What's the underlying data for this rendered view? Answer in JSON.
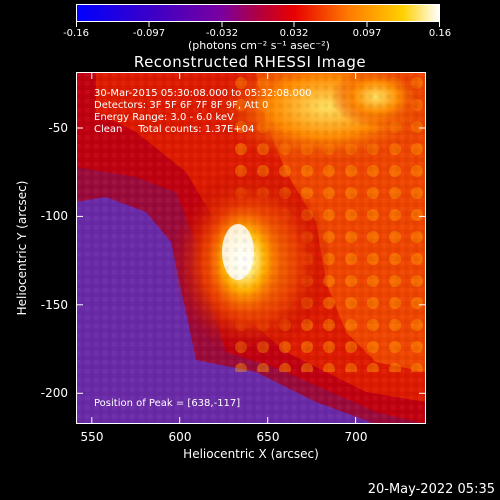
{
  "colorbar": {
    "tick_labels": [
      "-0.16",
      "-0.097",
      "-0.032",
      "0.032",
      "0.097",
      "0.16"
    ],
    "unit_label": "(photons cm⁻² s⁻¹ asec⁻²)",
    "min": -0.16,
    "max": 0.16
  },
  "image": {
    "title": "Reconstructed RHESSI Image",
    "annotations": {
      "time_range": "30-Mar-2015 05:30:08.000 to 05:32:08.000",
      "detectors": "Detectors: 3F 5F 6F 7F 8F 9F, Att 0",
      "energy_range": "Energy Range: 3.0 - 6.0 keV",
      "method_counts": "Clean     Total counts: 1.37E+04",
      "peak_position": "Position of Peak = [638,-117]"
    },
    "x_axis": {
      "label": "Heliocentric X (arcsec)",
      "ticks": [
        "550",
        "600",
        "650",
        "700"
      ],
      "tick_values": [
        550,
        600,
        650,
        700
      ],
      "range": [
        541,
        740
      ]
    },
    "y_axis": {
      "label": "Heliocentric Y (arcsec)",
      "ticks": [
        "-50",
        "-100",
        "-150",
        "-200"
      ],
      "tick_values": [
        -50,
        -100,
        -150,
        -200
      ],
      "range": [
        -210,
        -11
      ]
    },
    "peak": {
      "x": 638,
      "y": -117
    }
  },
  "footer": {
    "date": "20-May-2022 05:35"
  }
}
